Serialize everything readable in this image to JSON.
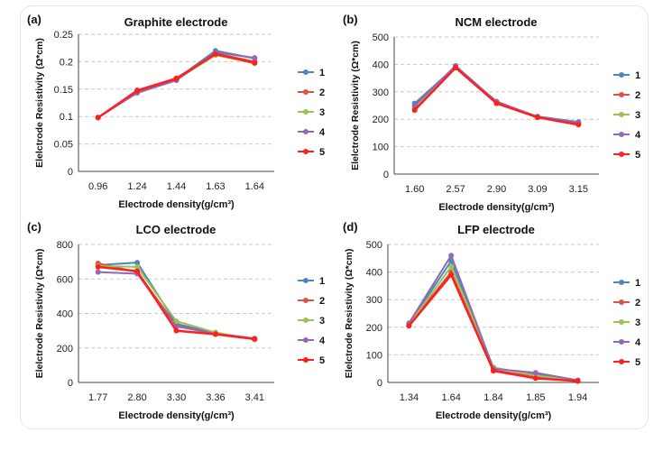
{
  "chart_data": [
    {
      "type": "line",
      "panel_label": "(a)",
      "title": "Graphite electrode",
      "xlabel": "Electrode density(g/cm³)",
      "ylabel": "Elelctrode Resistivity (Ω*cm)",
      "categories": [
        "0.96",
        "1.24",
        "1.44",
        "1.63",
        "1.64"
      ],
      "ylim": [
        0,
        0.25
      ],
      "yticks": [
        "0",
        "0.05",
        "0.1",
        "0.15",
        "0.2",
        "0.25"
      ],
      "grid": true,
      "legend": "right",
      "series": [
        {
          "name": "1",
          "color": "#4e86b9",
          "values": [
            0.098,
            0.145,
            0.168,
            0.22,
            0.206
          ]
        },
        {
          "name": "2",
          "color": "#d9534a",
          "values": [
            0.098,
            0.148,
            0.17,
            0.215,
            0.2
          ]
        },
        {
          "name": "3",
          "color": "#9bc255",
          "values": [
            0.098,
            0.146,
            0.167,
            0.212,
            0.197
          ]
        },
        {
          "name": "4",
          "color": "#8e6bb2",
          "values": [
            0.098,
            0.143,
            0.166,
            0.217,
            0.207
          ]
        },
        {
          "name": "5",
          "color": "#ff1f1f",
          "values": [
            0.098,
            0.147,
            0.169,
            0.214,
            0.198
          ]
        }
      ]
    },
    {
      "type": "line",
      "panel_label": "(b)",
      "title": "NCM electrode",
      "xlabel": "Electrode density(g/cm³)",
      "ylabel": "Elelctrode Resistivity (Ω*cm)",
      "categories": [
        "1.60",
        "2.57",
        "2.90",
        "3.09",
        "3.15"
      ],
      "ylim": [
        0,
        500
      ],
      "yticks": [
        "0",
        "100",
        "200",
        "300",
        "400",
        "500"
      ],
      "grid": true,
      "legend": "right",
      "series": [
        {
          "name": "1",
          "color": "#4e86b9",
          "values": [
            258,
            392,
            262,
            210,
            190
          ]
        },
        {
          "name": "2",
          "color": "#d9534a",
          "values": [
            240,
            390,
            265,
            208,
            183
          ]
        },
        {
          "name": "3",
          "color": "#9bc255",
          "values": [
            245,
            388,
            260,
            207,
            185
          ]
        },
        {
          "name": "4",
          "color": "#8e6bb2",
          "values": [
            250,
            395,
            263,
            209,
            188
          ]
        },
        {
          "name": "5",
          "color": "#ff1f1f",
          "values": [
            233,
            388,
            258,
            207,
            180
          ]
        }
      ]
    },
    {
      "type": "line",
      "panel_label": "(c)",
      "title": "LCO electrode",
      "xlabel": "Electrode density(g/cm³)",
      "ylabel": "Elelctrode Resistivity (Ω*cm)",
      "categories": [
        "1.77",
        "2.80",
        "3.30",
        "3.36",
        "3.41"
      ],
      "ylim": [
        0,
        800
      ],
      "yticks": [
        "0",
        "200",
        "400",
        "600",
        "800"
      ],
      "grid": true,
      "legend": "right",
      "series": [
        {
          "name": "1",
          "color": "#4e86b9",
          "values": [
            680,
            695,
            340,
            285,
            255
          ]
        },
        {
          "name": "2",
          "color": "#d9534a",
          "values": [
            690,
            640,
            330,
            280,
            250
          ]
        },
        {
          "name": "3",
          "color": "#9bc255",
          "values": [
            675,
            670,
            355,
            290,
            248
          ]
        },
        {
          "name": "4",
          "color": "#8e6bb2",
          "values": [
            640,
            630,
            325,
            282,
            253
          ]
        },
        {
          "name": "5",
          "color": "#ff1f1f",
          "values": [
            670,
            645,
            300,
            280,
            252
          ]
        }
      ]
    },
    {
      "type": "line",
      "panel_label": "(d)",
      "title": "LFP electrode",
      "xlabel": "Electrode density(g/cm³)",
      "ylabel": "Elelctrode Resistivity (Ω*cm)",
      "categories": [
        "1.34",
        "1.64",
        "1.84",
        "1.85",
        "1.94"
      ],
      "ylim": [
        0,
        500
      ],
      "yticks": [
        "0",
        "100",
        "200",
        "300",
        "400",
        "500"
      ],
      "grid": true,
      "legend": "right",
      "series": [
        {
          "name": "1",
          "color": "#4e86b9",
          "values": [
            213,
            440,
            52,
            30,
            6
          ]
        },
        {
          "name": "2",
          "color": "#d9534a",
          "values": [
            208,
            400,
            45,
            20,
            5
          ]
        },
        {
          "name": "3",
          "color": "#9bc255",
          "values": [
            210,
            420,
            55,
            25,
            6
          ]
        },
        {
          "name": "4",
          "color": "#8e6bb2",
          "values": [
            215,
            460,
            50,
            35,
            8
          ]
        },
        {
          "name": "5",
          "color": "#ff1f1f",
          "values": [
            205,
            390,
            42,
            15,
            5
          ]
        }
      ]
    }
  ]
}
